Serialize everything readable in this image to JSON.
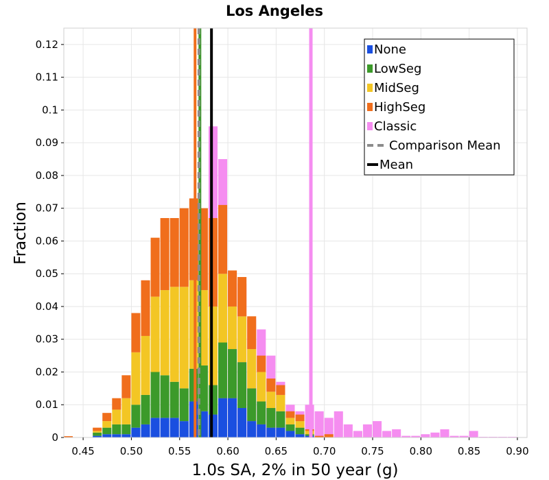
{
  "chart_data": {
    "type": "bar",
    "stacked": true,
    "title": "Los Angeles",
    "xlabel": "1.0s SA, 2% in 50 year (g)",
    "ylabel": "Fraction",
    "xlim": [
      0.43,
      0.91
    ],
    "ylim": [
      0,
      0.125
    ],
    "bin_width": 0.01,
    "grid": true,
    "legend_position": "top-right",
    "xticks": [
      "0.45",
      "0.50",
      "0.55",
      "0.60",
      "0.65",
      "0.70",
      "0.75",
      "0.80",
      "0.85",
      "0.90"
    ],
    "xtick_values": [
      0.45,
      0.5,
      0.55,
      0.6,
      0.65,
      0.7,
      0.75,
      0.8,
      0.85,
      0.9
    ],
    "yticks": [
      "0",
      "0.01",
      "0.02",
      "0.03",
      "0.04",
      "0.05",
      "0.06",
      "0.07",
      "0.08",
      "0.09",
      "0.1",
      "0.11",
      "0.12"
    ],
    "ytick_values": [
      0,
      0.01,
      0.02,
      0.03,
      0.04,
      0.05,
      0.06,
      0.07,
      0.08,
      0.09,
      0.1,
      0.11,
      0.12
    ],
    "stack_order": [
      "None",
      "LowSeg",
      "MidSeg",
      "HighSeg"
    ],
    "bins": [
      {
        "x": 0.435,
        "None": 0.0,
        "LowSeg": 0.0,
        "MidSeg": 0.0,
        "HighSeg": 0.0004
      },
      {
        "x": 0.465,
        "None": 0.0005,
        "LowSeg": 0.001,
        "MidSeg": 0.0005,
        "HighSeg": 0.001
      },
      {
        "x": 0.475,
        "None": 0.001,
        "LowSeg": 0.002,
        "MidSeg": 0.002,
        "HighSeg": 0.0025
      },
      {
        "x": 0.485,
        "None": 0.001,
        "LowSeg": 0.003,
        "MidSeg": 0.0045,
        "HighSeg": 0.0035
      },
      {
        "x": 0.495,
        "None": 0.001,
        "LowSeg": 0.003,
        "MidSeg": 0.008,
        "HighSeg": 0.007
      },
      {
        "x": 0.505,
        "None": 0.003,
        "LowSeg": 0.007,
        "MidSeg": 0.016,
        "HighSeg": 0.012
      },
      {
        "x": 0.515,
        "None": 0.004,
        "LowSeg": 0.009,
        "MidSeg": 0.018,
        "HighSeg": 0.017
      },
      {
        "x": 0.525,
        "None": 0.006,
        "LowSeg": 0.014,
        "MidSeg": 0.023,
        "HighSeg": 0.018
      },
      {
        "x": 0.535,
        "None": 0.006,
        "LowSeg": 0.013,
        "MidSeg": 0.026,
        "HighSeg": 0.022
      },
      {
        "x": 0.545,
        "None": 0.006,
        "LowSeg": 0.011,
        "MidSeg": 0.029,
        "HighSeg": 0.021
      },
      {
        "x": 0.555,
        "None": 0.005,
        "LowSeg": 0.01,
        "MidSeg": 0.031,
        "HighSeg": 0.024
      },
      {
        "x": 0.565,
        "None": 0.011,
        "LowSeg": 0.01,
        "MidSeg": 0.027,
        "HighSeg": 0.025
      },
      {
        "x": 0.575,
        "None": 0.008,
        "LowSeg": 0.014,
        "MidSeg": 0.023,
        "HighSeg": 0.025
      },
      {
        "x": 0.585,
        "None": 0.007,
        "LowSeg": 0.009,
        "MidSeg": 0.024,
        "HighSeg": 0.027
      },
      {
        "x": 0.595,
        "None": 0.012,
        "LowSeg": 0.017,
        "MidSeg": 0.021,
        "HighSeg": 0.021
      },
      {
        "x": 0.605,
        "None": 0.012,
        "LowSeg": 0.015,
        "MidSeg": 0.013,
        "HighSeg": 0.011
      },
      {
        "x": 0.615,
        "None": 0.009,
        "LowSeg": 0.014,
        "MidSeg": 0.014,
        "HighSeg": 0.012
      },
      {
        "x": 0.625,
        "None": 0.005,
        "LowSeg": 0.01,
        "MidSeg": 0.012,
        "HighSeg": 0.01
      },
      {
        "x": 0.635,
        "None": 0.004,
        "LowSeg": 0.007,
        "MidSeg": 0.009,
        "HighSeg": 0.005
      },
      {
        "x": 0.645,
        "None": 0.003,
        "LowSeg": 0.006,
        "MidSeg": 0.005,
        "HighSeg": 0.004
      },
      {
        "x": 0.655,
        "None": 0.003,
        "LowSeg": 0.005,
        "MidSeg": 0.005,
        "HighSeg": 0.003
      },
      {
        "x": 0.665,
        "None": 0.002,
        "LowSeg": 0.002,
        "MidSeg": 0.002,
        "HighSeg": 0.002
      },
      {
        "x": 0.675,
        "None": 0.001,
        "LowSeg": 0.002,
        "MidSeg": 0.002,
        "HighSeg": 0.002
      },
      {
        "x": 0.685,
        "None": 0.0005,
        "LowSeg": 0.0005,
        "MidSeg": 0.001,
        "HighSeg": 0.0005
      },
      {
        "x": 0.695,
        "None": 0.0,
        "LowSeg": 0.0,
        "MidSeg": 0.0,
        "HighSeg": 0.0005
      },
      {
        "x": 0.705,
        "None": 0.0,
        "LowSeg": 0.0,
        "MidSeg": 0.0,
        "HighSeg": 0.001
      }
    ],
    "classic": [
      {
        "x": 0.585,
        "value": 0.095
      },
      {
        "x": 0.595,
        "value": 0.085
      },
      {
        "x": 0.605,
        "value": 0.049
      },
      {
        "x": 0.615,
        "value": 0.047
      },
      {
        "x": 0.625,
        "value": 0.036
      },
      {
        "x": 0.635,
        "value": 0.033
      },
      {
        "x": 0.645,
        "value": 0.025
      },
      {
        "x": 0.655,
        "value": 0.017
      },
      {
        "x": 0.665,
        "value": 0.01
      },
      {
        "x": 0.675,
        "value": 0.008
      },
      {
        "x": 0.685,
        "value": 0.01
      },
      {
        "x": 0.695,
        "value": 0.008
      },
      {
        "x": 0.705,
        "value": 0.006
      },
      {
        "x": 0.715,
        "value": 0.008
      },
      {
        "x": 0.725,
        "value": 0.004
      },
      {
        "x": 0.735,
        "value": 0.002
      },
      {
        "x": 0.745,
        "value": 0.004
      },
      {
        "x": 0.755,
        "value": 0.005
      },
      {
        "x": 0.765,
        "value": 0.002
      },
      {
        "x": 0.775,
        "value": 0.0025
      },
      {
        "x": 0.785,
        "value": 0.0005
      },
      {
        "x": 0.795,
        "value": 0.0005
      },
      {
        "x": 0.805,
        "value": 0.001
      },
      {
        "x": 0.815,
        "value": 0.0015
      },
      {
        "x": 0.825,
        "value": 0.0025
      },
      {
        "x": 0.835,
        "value": 0.0005
      },
      {
        "x": 0.845,
        "value": 0.0005
      },
      {
        "x": 0.855,
        "value": 0.002
      },
      {
        "x": 0.865,
        "value": 0.0002
      },
      {
        "x": 0.875,
        "value": 0.0002
      },
      {
        "x": 0.885,
        "value": 0.0002
      },
      {
        "x": 0.895,
        "value": 0.0002
      }
    ],
    "lines": {
      "mean": 0.583,
      "comparison_mean": 0.57,
      "classic_mean": 0.686,
      "highseg_line_x": 0.566,
      "lowseg_line_x": 0.571
    },
    "series_colors": {
      "None": "#1a4fe0",
      "LowSeg": "#3c9a2a",
      "MidSeg": "#f3c624",
      "HighSeg": "#f06e1c",
      "Classic": "#f58df0",
      "Comparison Mean": "#8c8c8c",
      "Mean": "#000000"
    },
    "legend": [
      {
        "label": "None",
        "kind": "box",
        "color": "#1a4fe0"
      },
      {
        "label": "LowSeg",
        "kind": "box",
        "color": "#3c9a2a"
      },
      {
        "label": "MidSeg",
        "kind": "box",
        "color": "#f3c624"
      },
      {
        "label": "HighSeg",
        "kind": "box",
        "color": "#f06e1c"
      },
      {
        "label": "Classic",
        "kind": "box",
        "color": "#f58df0"
      },
      {
        "label": "Comparison Mean",
        "kind": "dash",
        "color": "#8c8c8c"
      },
      {
        "label": "Mean",
        "kind": "line",
        "color": "#000000"
      }
    ]
  }
}
